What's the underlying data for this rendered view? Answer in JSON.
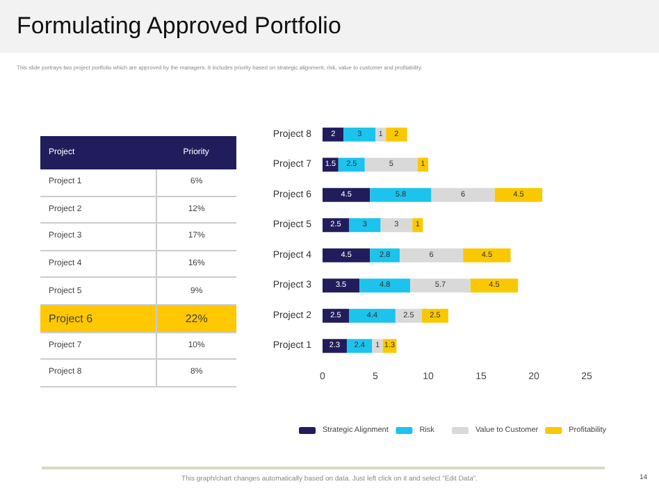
{
  "chart_data": [
    {
      "type": "other",
      "title": "Formulating Approved Portfolio",
      "subtitle": "This slide portrays two project portfolio which are approved by the managers. It includes priority based on strategic alignment, risk, value to customer and profitability.",
      "xlabel": "Project",
      "ylabel": "Priority",
      "categories": [
        "Project 1",
        "Project 2",
        "Project 3",
        "Project 4",
        "Project 5",
        "Project 6",
        "Project 7",
        "Project 8"
      ],
      "value_labels": [
        "6%",
        "12%",
        "17%",
        "16%",
        "9%",
        "22%",
        "10%",
        "8%"
      ],
      "colors": [
        "#ffffff",
        "#ffffff",
        "#ffffff",
        "#ffffff",
        "#ffffff",
        "#ffc800",
        "#ffffff",
        "#ffffff"
      ]
    },
    {
      "type": "bar",
      "orientation": "horizontal",
      "stacked": true,
      "data_labels": true,
      "legend": "bottom",
      "grid": false,
      "categories": [
        "Project 8",
        "Project 7",
        "Project 6",
        "Project 5",
        "Project 4",
        "Project 3",
        "Project 2",
        "Project 1"
      ],
      "series": [
        {
          "name": "Strategic Alignment",
          "color": "#211d5c",
          "values": [
            2,
            1.5,
            4.5,
            2.5,
            4.5,
            3.5,
            2.5,
            2.3
          ]
        },
        {
          "name": "Risk",
          "color": "#1cc3ec",
          "values": [
            3,
            2.5,
            5.8,
            3,
            2.8,
            4.8,
            4.4,
            2.4
          ]
        },
        {
          "name": "Value to Customer",
          "color": "#d9d9d9",
          "values": [
            1,
            5,
            6,
            3,
            6,
            5.7,
            2.5,
            1
          ]
        },
        {
          "name": "Profitability",
          "color": "#fac800",
          "values": [
            2,
            1,
            4.5,
            1,
            4.5,
            4.5,
            2.5,
            1.3
          ]
        }
      ],
      "xlim": [
        0,
        25
      ],
      "xticks": [
        0,
        5,
        10,
        15,
        20,
        25
      ],
      "annotations": [
        "This graph/chart changes automatically based on data. Just left click on it and select “Edit Data”.",
        "14"
      ]
    }
  ]
}
